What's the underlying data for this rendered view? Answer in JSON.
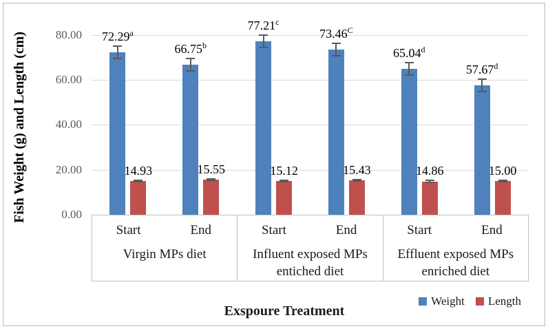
{
  "chart_data": {
    "type": "bar",
    "title": "",
    "xlabel": "Exspoure Treatment",
    "ylabel": "Fish Weight (g) and Length (cm)",
    "ylim": [
      0,
      80
    ],
    "ytick_step": 20,
    "ytick_labels": [
      "0.00",
      "20.00",
      "40.00",
      "60.00",
      "80.00"
    ],
    "grid": true,
    "legend_position": "bottom-right",
    "groups": [
      {
        "label": "Virgin MPs diet",
        "categories": [
          "Start",
          "End"
        ]
      },
      {
        "label": "Influent exposed MPs entiched diet",
        "categories": [
          "Start",
          "End"
        ]
      },
      {
        "label": "Effluent exposed MPs enriched diet",
        "categories": [
          "Start",
          "End"
        ]
      }
    ],
    "series": [
      {
        "name": "Weight",
        "color": "#4F81BD",
        "values": [
          72.29,
          66.75,
          77.21,
          73.46,
          65.04,
          57.67
        ],
        "data_labels": [
          "72.29",
          "66.75",
          "77.21",
          "73.46",
          "65.04",
          "57.67"
        ],
        "superscripts": [
          "a",
          "b",
          "c",
          "C",
          "d",
          "d"
        ],
        "error_bar": 2.8
      },
      {
        "name": "Length",
        "color": "#C0504D",
        "values": [
          14.93,
          15.55,
          15.12,
          15.43,
          14.86,
          15.0
        ],
        "data_labels": [
          "14.93",
          "15.55",
          "15.12",
          "15.43",
          "14.86",
          "15.00"
        ],
        "superscripts": [
          "",
          "",
          "",
          "",
          "",
          ""
        ],
        "error_bar": 0.35
      }
    ],
    "colors": {
      "gridline": "#D9D9D9",
      "axis_table_border": "#BFBFBF",
      "tick_label": "#595959",
      "error_bar": "#595959",
      "data_label": "#000000"
    }
  }
}
